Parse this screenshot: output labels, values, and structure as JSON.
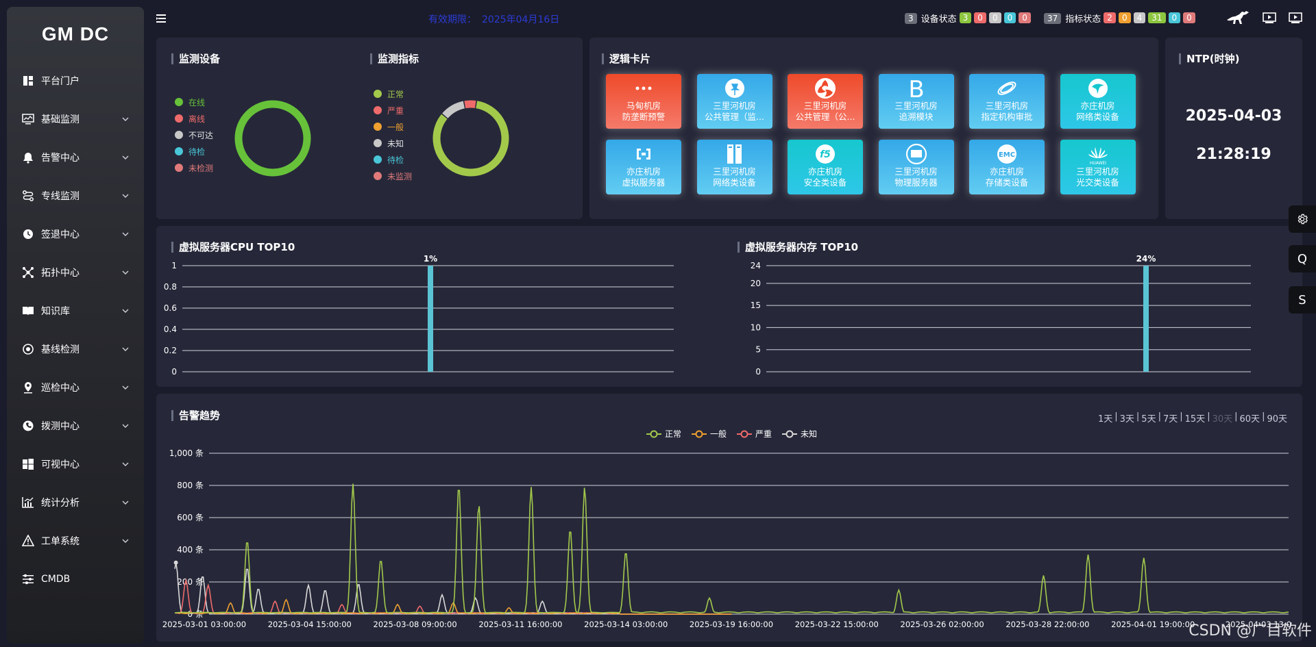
{
  "sidebar": {
    "logo": "GM DC",
    "items": [
      {
        "label": "平台门户",
        "icon": "dashboard-icon",
        "chevron": false
      },
      {
        "label": "基础监测",
        "icon": "monitor-icon",
        "chevron": true
      },
      {
        "label": "告警中心",
        "icon": "bell-icon",
        "chevron": true
      },
      {
        "label": "专线监测",
        "icon": "route-icon",
        "chevron": true
      },
      {
        "label": "签退中心",
        "icon": "clock-icon",
        "chevron": true
      },
      {
        "label": "拓扑中心",
        "icon": "topology-icon",
        "chevron": true
      },
      {
        "label": "知识库",
        "icon": "book-icon",
        "chevron": true
      },
      {
        "label": "基线检测",
        "icon": "baseline-icon",
        "chevron": true
      },
      {
        "label": "巡检中心",
        "icon": "location-icon",
        "chevron": true
      },
      {
        "label": "拨测中心",
        "icon": "dial-icon",
        "chevron": true
      },
      {
        "label": "可视中心",
        "icon": "windows-icon",
        "chevron": true
      },
      {
        "label": "统计分析",
        "icon": "stats-icon",
        "chevron": true
      },
      {
        "label": "工单系统",
        "icon": "warning-icon",
        "chevron": true
      },
      {
        "label": "CMDB",
        "icon": "sliders-icon",
        "chevron": false
      }
    ]
  },
  "topbar": {
    "expiry_label": "有效期限：",
    "expiry_date": "2025年04月16日",
    "device_status": {
      "total": "3",
      "label": "设备状态",
      "counts": [
        "3",
        "0",
        "0",
        "0",
        "0"
      ]
    },
    "metric_status": {
      "total": "37",
      "label": "指标状态",
      "counts": [
        "2",
        "0",
        "4",
        "31",
        "0",
        "0"
      ]
    },
    "colors": {
      "green": "#8dc63f",
      "red": "#ef6b6b",
      "orange": "#f0a030",
      "grey": "#c8c8c8",
      "cyan": "#49c6d8",
      "pink": "#e07a7a"
    }
  },
  "device_panel": {
    "title": "监测设备",
    "legend": [
      {
        "label": "在线",
        "color": "#67c23a"
      },
      {
        "label": "离线",
        "color": "#ef6b6b"
      },
      {
        "label": "不可达",
        "color": "#c8c8c8"
      },
      {
        "label": "待检",
        "color": "#49c6d8"
      },
      {
        "label": "未检测",
        "color": "#e07a7a"
      }
    ],
    "donut": [
      3,
      0,
      0,
      0,
      0
    ]
  },
  "metric_panel": {
    "title": "监测指标",
    "legend": [
      {
        "label": "正常",
        "color": "#a3c94b"
      },
      {
        "label": "严重",
        "color": "#ef6b6b"
      },
      {
        "label": "一般",
        "color": "#f0a030"
      },
      {
        "label": "未知",
        "color": "#c8c8c8"
      },
      {
        "label": "待检",
        "color": "#49c6d8"
      },
      {
        "label": "未监测",
        "color": "#e07a7a"
      }
    ],
    "donut": [
      31,
      2,
      0,
      4,
      0,
      0
    ]
  },
  "logic_cards": {
    "title": "逻辑卡片",
    "cards": [
      {
        "line1": "马甸机房",
        "line2": "防垄断预警",
        "style": "red",
        "icon": "dots-icon"
      },
      {
        "line1": "三里河机房",
        "line2": "公共管理（监...",
        "style": "blue",
        "icon": "pin-icon"
      },
      {
        "line1": "三里河机房",
        "line2": "公共管理（公...",
        "style": "red",
        "icon": "swirl-icon"
      },
      {
        "line1": "三里河机房",
        "line2": "追溯模块",
        "style": "blue",
        "icon": "letter-b-icon"
      },
      {
        "line1": "三里河机房",
        "line2": "指定机构审批",
        "style": "blue",
        "icon": "orbit-icon"
      },
      {
        "line1": "亦庄机房",
        "line2": "网络类设备",
        "style": "teal",
        "icon": "bird-badge-icon"
      },
      {
        "line1": "亦庄机房",
        "line2": "虚拟服务器",
        "style": "blue",
        "icon": "cloud-bracket-icon"
      },
      {
        "line1": "三里河机房",
        "line2": "网络类设备",
        "style": "blue",
        "icon": "server-rack-icon"
      },
      {
        "line1": "亦庄机房",
        "line2": "安全类设备",
        "style": "teal",
        "icon": "f5-logo-icon"
      },
      {
        "line1": "三里河机房",
        "line2": "物理服务器",
        "style": "blue",
        "icon": "monitor-badge-icon"
      },
      {
        "line1": "亦庄机房",
        "line2": "存储类设备",
        "style": "blue",
        "icon": "emc-logo-icon"
      },
      {
        "line1": "三里河机房",
        "line2": "光交类设备",
        "style": "teal",
        "icon": "huawei-logo-icon"
      }
    ],
    "emc_text": "EMC",
    "huawei_text": "HUAWEI",
    "f5_text": "f5"
  },
  "ntp": {
    "title": "NTP(时钟)",
    "date": "2025-04-03",
    "time": "21:28:19"
  },
  "float_buttons": {
    "settings": "",
    "q": "Q",
    "s": "S"
  },
  "alarm_trend": {
    "title": "告警趋势",
    "ranges": [
      {
        "label": "1天",
        "disabled": false
      },
      {
        "label": "3天",
        "disabled": false
      },
      {
        "label": "5天",
        "disabled": false
      },
      {
        "label": "7天",
        "disabled": false
      },
      {
        "label": "15天",
        "disabled": false
      },
      {
        "label": "30天",
        "disabled": true
      },
      {
        "label": "60天",
        "disabled": false
      },
      {
        "label": "90天",
        "disabled": false
      }
    ]
  },
  "watermark": "CSDN @广目软件",
  "chart_data": [
    {
      "type": "bar",
      "title": "虚拟服务器CPU TOP10",
      "categories": [
        ""
      ],
      "values": [
        1
      ],
      "data_labels": [
        "1%"
      ],
      "yticks": [
        "0",
        "0.2",
        "0.4",
        "0.6",
        "0.8",
        "1"
      ],
      "ylim": [
        0,
        1
      ],
      "color": "#5bc4d4"
    },
    {
      "type": "bar",
      "title": "虚拟服务器内存 TOP10",
      "categories": [
        ""
      ],
      "values": [
        24
      ],
      "data_labels": [
        "24%"
      ],
      "yticks": [
        "0",
        "5",
        "10",
        "15",
        "20",
        "24"
      ],
      "ylim": [
        0,
        24
      ],
      "color": "#5bc4d4"
    },
    {
      "type": "line",
      "title": "告警趋势",
      "ylim": [
        0,
        1000
      ],
      "yticks": [
        "0 条",
        "200 条",
        "400 条",
        "600 条",
        "800 条",
        "1,000 条"
      ],
      "xticks": [
        "2025-03-01 03:00:00",
        "2025-03-04 15:00:00",
        "2025-03-08 09:00:00",
        "2025-03-11 16:00:00",
        "2025-03-14 03:00:00",
        "2025-03-19 16:00:00",
        "2025-03-22 15:00:00",
        "2025-03-26 02:00:00",
        "2025-03-28 22:00:00",
        "2025-04-01 19:00:00",
        "2025-04-03 13:0"
      ],
      "legend": [
        "正常",
        "一般",
        "严重",
        "未知"
      ],
      "colors": [
        "#a3c94b",
        "#f0a030",
        "#ef6b6b",
        "#d8d8d8"
      ],
      "series": [
        {
          "name": "正常",
          "peaks": [
            [
              0.065,
              460
            ],
            [
              0.16,
              810
            ],
            [
              0.185,
              340
            ],
            [
              0.255,
              800
            ],
            [
              0.273,
              680
            ],
            [
              0.32,
              790
            ],
            [
              0.355,
              530
            ],
            [
              0.368,
              790
            ],
            [
              0.405,
              390
            ],
            [
              0.48,
              100
            ],
            [
              0.65,
              150
            ],
            [
              0.78,
              240
            ],
            [
              0.82,
              370
            ],
            [
              0.87,
              350
            ]
          ]
        },
        {
          "name": "一般",
          "peaks": [
            [
              0.05,
              70
            ],
            [
              0.1,
              90
            ],
            [
              0.2,
              60
            ],
            [
              0.25,
              70
            ],
            [
              0.3,
              40
            ]
          ]
        },
        {
          "name": "严重",
          "peaks": [
            [
              0.01,
              210
            ],
            [
              0.03,
              180
            ],
            [
              0.09,
              80
            ],
            [
              0.15,
              60
            ],
            [
              0.22,
              50
            ]
          ]
        },
        {
          "name": "未知",
          "peaks": [
            [
              0.001,
              320
            ],
            [
              0.025,
              240
            ],
            [
              0.065,
              290
            ],
            [
              0.075,
              160
            ],
            [
              0.12,
              180
            ],
            [
              0.135,
              150
            ],
            [
              0.165,
              190
            ],
            [
              0.24,
              120
            ],
            [
              0.27,
              100
            ],
            [
              0.33,
              80
            ]
          ]
        }
      ]
    }
  ]
}
